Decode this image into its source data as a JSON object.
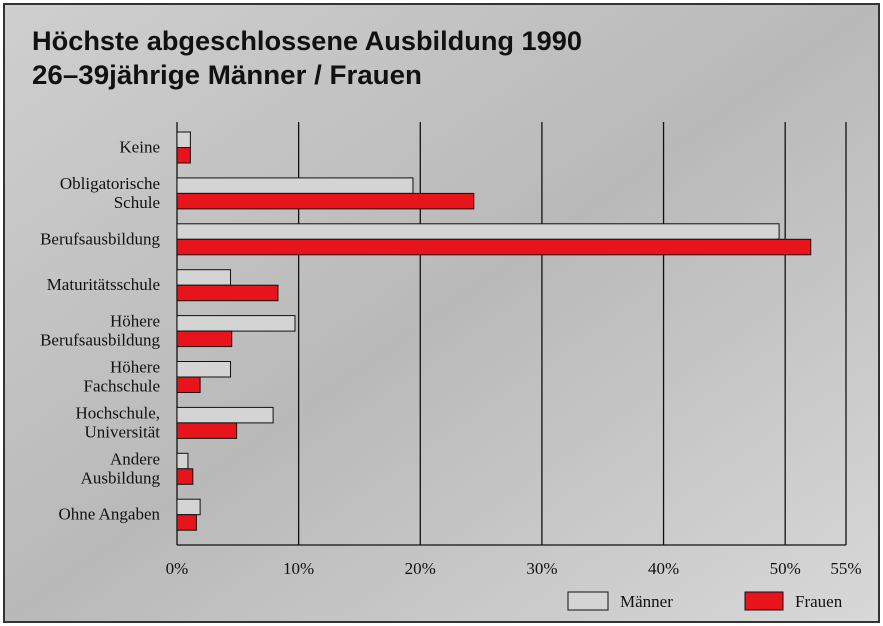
{
  "chart_data": {
    "type": "bar",
    "title": "Höchste abgeschlossene Ausbildung 1990",
    "subtitle": "26–39jährige Männer / Frauen",
    "categories": [
      [
        "Keine"
      ],
      [
        "Obligatorische",
        "Schule"
      ],
      [
        "Berufsausbildung"
      ],
      [
        "Maturitätsschule"
      ],
      [
        "Höhere",
        "Berufsausbildung"
      ],
      [
        "Höhere",
        "Fachschule"
      ],
      [
        "Hochschule,",
        "Universität"
      ],
      [
        "Andere",
        "Ausbildung"
      ],
      [
        "Ohne Angaben"
      ]
    ],
    "series": [
      {
        "name": "Männer",
        "color": "#d4d4d4",
        "values": [
          1.1,
          19.4,
          49.5,
          4.4,
          9.7,
          4.4,
          7.9,
          0.9,
          1.9
        ]
      },
      {
        "name": "Frauen",
        "color": "#e8141c",
        "values": [
          1.1,
          24.4,
          52.1,
          8.3,
          4.5,
          1.9,
          4.9,
          1.3,
          1.6
        ]
      }
    ],
    "xlim": [
      0,
      55
    ],
    "xticks": [
      {
        "value": 0,
        "label": "0%"
      },
      {
        "value": 10,
        "label": "10%"
      },
      {
        "value": 20,
        "label": "20%"
      },
      {
        "value": 30,
        "label": "30%"
      },
      {
        "value": 40,
        "label": "40%"
      },
      {
        "value": 50,
        "label": "50%"
      },
      {
        "value": 55,
        "label": "55%"
      }
    ],
    "grid": true,
    "legend": "bottom-right"
  }
}
